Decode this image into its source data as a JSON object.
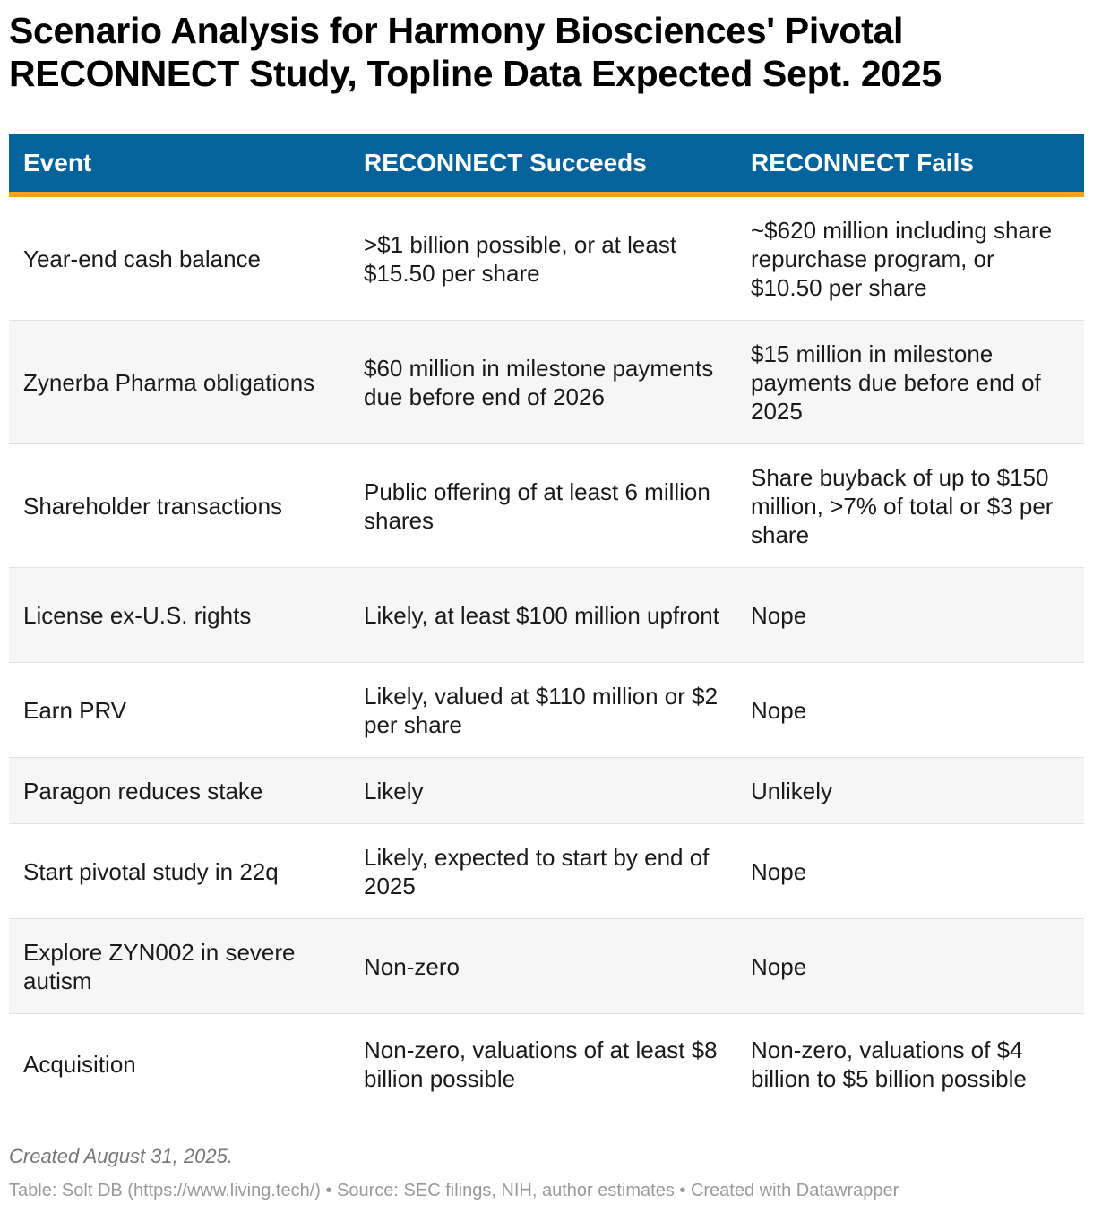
{
  "title": {
    "line1": "Scenario Analysis for Harmony Biosciences' Pivotal",
    "line2": "RECONNECT Study, Topline Data Expected Sept. 2025"
  },
  "chart_data": {
    "type": "table",
    "columns": [
      "Event",
      "RECONNECT Succeeds",
      "RECONNECT Fails"
    ],
    "rows": [
      [
        "Year-end cash balance",
        ">$1 billion possible, or at least $15.50 per share",
        "~$620 million including share repurchase program, or $10.50 per share"
      ],
      [
        "Zynerba Pharma obligations",
        "$60 million in milestone payments due before end of 2026",
        "$15 million in milestone payments due before end of 2025"
      ],
      [
        "Shareholder transactions",
        "Public offering of at least 6 million shares",
        "Share buyback of up to $150 million, >7% of total or $3 per share"
      ],
      [
        "License ex-U.S. rights",
        "Likely, at least $100 million upfront",
        "Nope"
      ],
      [
        "Earn PRV",
        "Likely, valued at $110 million or $2 per share",
        "Nope"
      ],
      [
        "Paragon reduces stake",
        "Likely",
        "Unlikely"
      ],
      [
        "Start pivotal study in 22q",
        "Likely, expected to start by end of 2025",
        "Nope"
      ],
      [
        "Explore ZYN002 in severe autism",
        "Non-zero",
        "Nope"
      ],
      [
        "Acquisition",
        "Non-zero, valuations of at least $8 billion possible",
        "Non-zero, valuations of $4 billion to $5 billion possible"
      ]
    ],
    "colors": {
      "header_bg": "#03639a",
      "header_accent": "#f7a21d",
      "stripe": "#f6f6f6"
    }
  },
  "footer": {
    "note": "Created August 31, 2025.",
    "source": "Table: Solt DB (https://www.living.tech/) • Source: SEC filings, NIH, author estimates • Created with Datawrapper"
  }
}
